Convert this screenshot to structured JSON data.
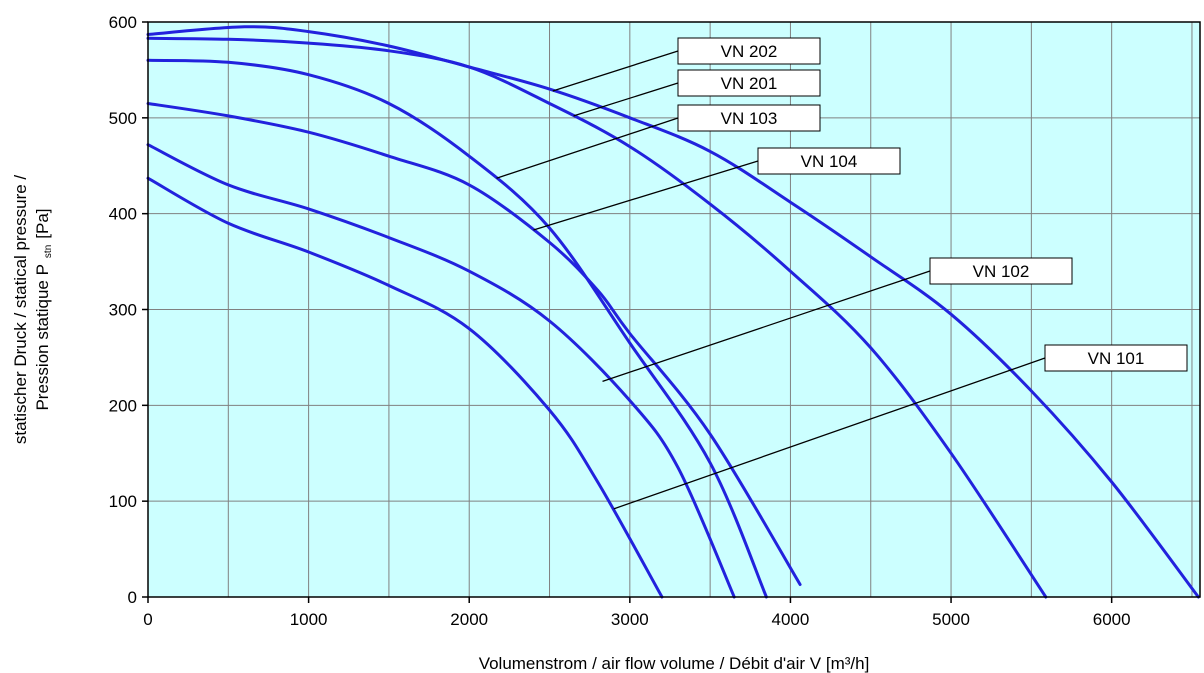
{
  "colors": {
    "plot_background": "#ccffff",
    "grid": "#808080",
    "curve": "#2222dd",
    "leader": "#000000",
    "label_box": "#ffffff"
  },
  "chart_data": {
    "type": "line",
    "title": "",
    "xlabel": "Volumenstrom / air flow volume / Débit d'air V [m³/h]",
    "ylabel_line1": "statischer Druck / statical pressure /",
    "ylabel_line2": "Pression statique P",
    "ylabel_sub": "stn",
    "ylabel_unit": "[Pa]",
    "xlim": [
      0,
      6550
    ],
    "ylim": [
      0,
      600
    ],
    "xticks": [
      0,
      1000,
      2000,
      3000,
      4000,
      5000,
      6000
    ],
    "yticks": [
      0,
      100,
      200,
      300,
      400,
      500,
      600
    ],
    "xgrid_step": 500,
    "ygrid_step": 100,
    "grid": true,
    "series": [
      {
        "name": "VN 202",
        "points": [
          [
            0,
            587
          ],
          [
            600,
            595
          ],
          [
            1000,
            590
          ],
          [
            1500,
            575
          ],
          [
            2000,
            553
          ],
          [
            2500,
            530
          ],
          [
            3000,
            500
          ],
          [
            3500,
            465
          ],
          [
            4000,
            412
          ],
          [
            4500,
            355
          ],
          [
            5000,
            295
          ],
          [
            5500,
            215
          ],
          [
            6000,
            120
          ],
          [
            6540,
            0
          ]
        ],
        "label_anchor": [
          2520,
          528
        ],
        "label_at": [
          678,
          38
        ]
      },
      {
        "name": "VN 201",
        "points": [
          [
            0,
            583
          ],
          [
            500,
            582
          ],
          [
            1000,
            578
          ],
          [
            1500,
            570
          ],
          [
            2000,
            553
          ],
          [
            2500,
            515
          ],
          [
            3000,
            470
          ],
          [
            3500,
            410
          ],
          [
            4000,
            340
          ],
          [
            4500,
            260
          ],
          [
            5000,
            150
          ],
          [
            5590,
            0
          ]
        ],
        "label_anchor": [
          2650,
          502
        ],
        "label_at": [
          678,
          70
        ]
      },
      {
        "name": "VN 103",
        "points": [
          [
            0,
            560
          ],
          [
            500,
            558
          ],
          [
            1000,
            545
          ],
          [
            1500,
            515
          ],
          [
            2000,
            460
          ],
          [
            2500,
            385
          ],
          [
            3000,
            265
          ],
          [
            3500,
            140
          ],
          [
            3850,
            0
          ]
        ],
        "label_anchor": [
          2170,
          437
        ],
        "label_at": [
          678,
          105
        ]
      },
      {
        "name": "VN 104",
        "points": [
          [
            0,
            515
          ],
          [
            500,
            502
          ],
          [
            1000,
            485
          ],
          [
            1500,
            460
          ],
          [
            2000,
            430
          ],
          [
            2500,
            370
          ],
          [
            2800,
            320
          ],
          [
            3000,
            275
          ],
          [
            3500,
            170
          ],
          [
            4060,
            13
          ]
        ],
        "label_anchor": [
          2400,
          383
        ],
        "label_at": [
          758,
          148
        ]
      },
      {
        "name": "VN 102",
        "points": [
          [
            0,
            472
          ],
          [
            500,
            430
          ],
          [
            1000,
            405
          ],
          [
            1500,
            375
          ],
          [
            2000,
            340
          ],
          [
            2500,
            288
          ],
          [
            3000,
            205
          ],
          [
            3300,
            135
          ],
          [
            3650,
            0
          ]
        ],
        "label_anchor": [
          2830,
          225
        ],
        "label_at": [
          930,
          258
        ]
      },
      {
        "name": "VN 101",
        "points": [
          [
            0,
            437
          ],
          [
            500,
            390
          ],
          [
            1000,
            360
          ],
          [
            1500,
            325
          ],
          [
            2000,
            280
          ],
          [
            2500,
            195
          ],
          [
            2800,
            120
          ],
          [
            3200,
            0
          ]
        ],
        "label_anchor": [
          2900,
          92
        ],
        "label_at": [
          1045,
          345
        ]
      }
    ]
  }
}
